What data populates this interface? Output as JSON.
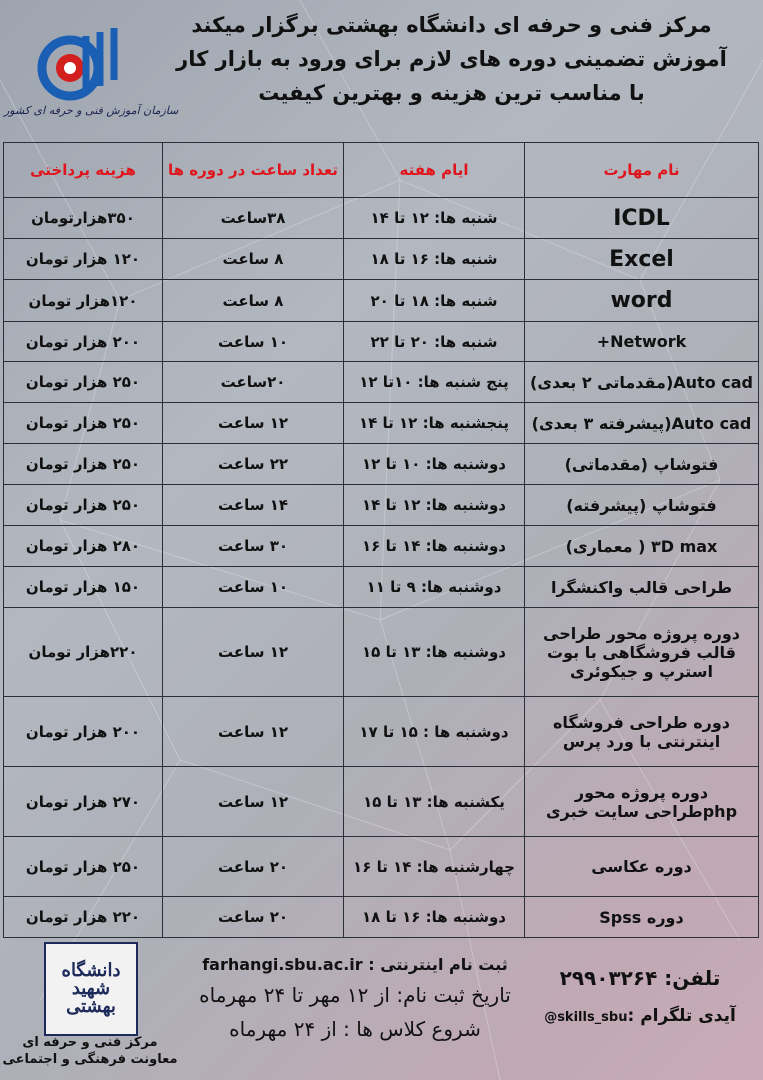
{
  "header": {
    "line1": "مرکز فنی و حرفه ای دانشگاه بهشتی برگزار میکند",
    "line2": "آموزش تضمینی دوره های لازم برای ورود به بازار کار",
    "line3": "با مناسب ترین هزینه و بهترین کیفیت",
    "logo_caption": "سازمان آموزش فنی و حرفه ای کشور"
  },
  "colors": {
    "header_text": "#e0141c",
    "logo_blue": "#1a5fb4",
    "logo_red": "#d41f1f"
  },
  "table": {
    "columns": [
      "نام مهارت",
      "ایام هفته",
      "تعداد ساعت در دوره ها",
      "هزینه پرداختی"
    ],
    "rows": [
      {
        "name": "ICDL",
        "days": "شنبه ها: ۱۲ تا ۱۴",
        "hours": "۳۸ساعت",
        "cost": "۳۵۰هزارتومان"
      },
      {
        "name": "Excel",
        "days": "شنبه ها: ۱۶ تا ۱۸",
        "hours": "۸ ساعت",
        "cost": "۱۲۰ هزار تومان"
      },
      {
        "name": "word",
        "days": "شنبه ها: ۱۸ تا ۲۰",
        "hours": "۸ ساعت",
        "cost": "۱۲۰هزار تومان"
      },
      {
        "name": "Network+",
        "days": "شنبه ها: ۲۰ تا ۲۲",
        "hours": "۱۰ ساعت",
        "cost": "۲۰۰ هزار تومان"
      },
      {
        "name": "Auto cad(مقدماتی ۲ بعدی)",
        "days": "پنج شنبه ها: ۱۰تا ۱۲",
        "hours": "۲۰ساعت",
        "cost": "۲۵۰ هزار تومان"
      },
      {
        "name": "Auto cad(پیشرفته ۳ بعدی)",
        "days": "پنجشنبه ها: ۱۲ تا ۱۴",
        "hours": "۱۲ ساعت",
        "cost": "۲۵۰ هزار تومان"
      },
      {
        "name": "فتوشاپ (مقدماتی)",
        "days": "دوشنبه ها: ۱۰ تا ۱۲",
        "hours": "۲۲ ساعت",
        "cost": "۲۵۰ هزار تومان"
      },
      {
        "name": "فتوشاپ (پیشرفته)",
        "days": "دوشنبه ها: ۱۲ تا ۱۴",
        "hours": "۱۴ ساعت",
        "cost": "۲۵۰ هزار تومان"
      },
      {
        "name": "۳D max ( معماری)",
        "days": "دوشنبه ها: ۱۴ تا ۱۶",
        "hours": "۳۰ ساعت",
        "cost": "۲۸۰ هزار تومان"
      },
      {
        "name": "طراحی قالب واکنشگرا",
        "days": "دوشنبه ها: ۹ تا ۱۱",
        "hours": "۱۰ ساعت",
        "cost": "۱۵۰ هزار تومان"
      },
      {
        "name": "دوره پروژه محور طراحی قالب فروشگاهی با بوت استرپ و جیکوئری",
        "days": "دوشنبه ها: ۱۳ تا ۱۵",
        "hours": "۱۲ ساعت",
        "cost": "۲۲۰هزار تومان"
      },
      {
        "name": "دوره طراحی فروشگاه اینترنتی با ورد پرس",
        "days": "دوشنبه ها : ۱۵ تا ۱۷",
        "hours": "۱۲ ساعت",
        "cost": "۲۰۰ هزار تومان"
      },
      {
        "name": "دوره پروژه محور phpطراحی سایت خبری",
        "days": "یکشنبه ها: ۱۳ تا ۱۵",
        "hours": "۱۲ ساعت",
        "cost": "۲۷۰ هزار تومان"
      },
      {
        "name": "دوره عکاسی",
        "days": "چهارشنبه ها: ۱۴ تا ۱۶",
        "hours": "۲۰ ساعت",
        "cost": "۲۵۰ هزار تومان"
      },
      {
        "name": "دوره Spss",
        "days": "دوشنبه ها: ۱۶ تا ۱۸",
        "hours": "۲۰ ساعت",
        "cost": "۲۲۰ هزار تومان"
      }
    ]
  },
  "footer": {
    "sbu_logo_text": "دانشگاه شهید بهشتی",
    "sbu_caption_1": "مرکز فنی و حرفه ای",
    "sbu_caption_2": "معاونت فرهنگی و اجتماعی",
    "online_reg_label": "ثبت نام اینترنتی :",
    "online_reg_url": "farhangi.sbu.ac.ir",
    "reg_dates": "تاریخ ثبت نام: از ۱۲ مهر تا ۲۴ مهرماه",
    "class_start": "شروع کلاس ها : از ۲۴ مهرماه",
    "phone_label": "تلفن:",
    "phone": "۲۹۹۰۳۲۶۴",
    "telegram_label": "آیدی تلگرام :",
    "telegram_id": "@skills_sbu"
  }
}
